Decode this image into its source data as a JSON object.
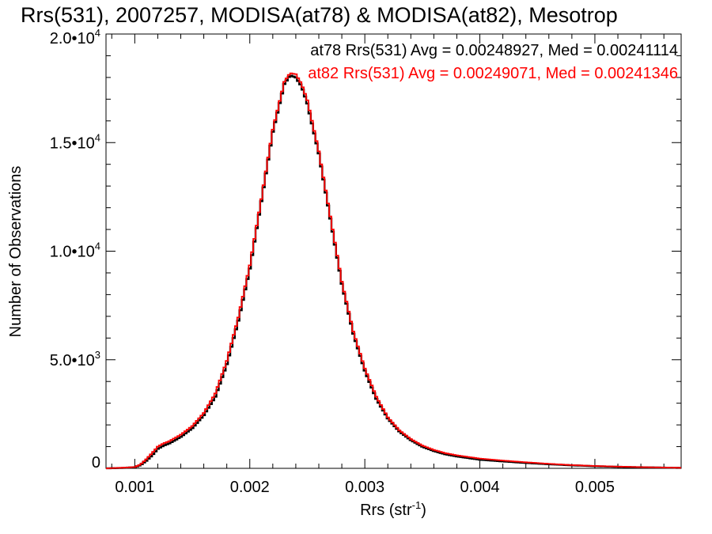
{
  "chart_data": {
    "type": "line",
    "title": "Rrs(531), 2007257, MODISA(at78) & MODISA(at82), Mesotrop",
    "xlabel_main": "Rrs (str",
    "xlabel_sup": "-1",
    "xlabel_end": ")",
    "ylabel": "Number of Observations",
    "xlim": [
      0.00075,
      0.00575
    ],
    "ylim": [
      0,
      20000
    ],
    "x_ticks": [
      0.001,
      0.002,
      0.003,
      0.004,
      0.005
    ],
    "x_tick_labels": [
      "0.001",
      "0.002",
      "0.003",
      "0.004",
      "0.005"
    ],
    "y_ticks": [
      {
        "value": 0,
        "mantissa": "0",
        "exp": ""
      },
      {
        "value": 5000,
        "mantissa": "5.0•10",
        "exp": "3"
      },
      {
        "value": 10000,
        "mantissa": "1.0•10",
        "exp": "4"
      },
      {
        "value": 15000,
        "mantissa": "1.5•10",
        "exp": "4"
      },
      {
        "value": 20000,
        "mantissa": "2.0•10",
        "exp": "4"
      }
    ],
    "legend_position": "top-right",
    "series": [
      {
        "name": "at78",
        "color": "#000000",
        "annotation": "at78 Rrs(531) Avg = 0.00248927, Med = 0.00241114",
        "x": [
          0.00075,
          0.0009,
          0.001,
          0.00105,
          0.0011,
          0.00115,
          0.0012,
          0.00125,
          0.0013,
          0.0014,
          0.0015,
          0.0016,
          0.0017,
          0.0018,
          0.0019,
          0.002,
          0.0021,
          0.0022,
          0.0023,
          0.00235,
          0.0024,
          0.00245,
          0.0025,
          0.0026,
          0.0027,
          0.0028,
          0.0029,
          0.003,
          0.0031,
          0.0032,
          0.0033,
          0.0034,
          0.0035,
          0.0036,
          0.0037,
          0.0038,
          0.004,
          0.0042,
          0.0044,
          0.0046,
          0.0048,
          0.005,
          0.0052,
          0.0054,
          0.00575
        ],
        "y": [
          0,
          20,
          50,
          150,
          350,
          600,
          900,
          1050,
          1150,
          1450,
          1850,
          2450,
          3300,
          4800,
          6800,
          9200,
          12300,
          15500,
          17700,
          18100,
          18000,
          17600,
          16800,
          14500,
          11500,
          8500,
          6200,
          4500,
          3200,
          2300,
          1700,
          1300,
          1000,
          800,
          650,
          550,
          400,
          320,
          250,
          190,
          140,
          100,
          70,
          50,
          20
        ]
      },
      {
        "name": "at82",
        "color": "#ff0000",
        "annotation": "at82 Rrs(531) Avg = 0.00249071, Med = 0.00241346",
        "x": [
          0.00075,
          0.0009,
          0.001,
          0.00105,
          0.0011,
          0.00115,
          0.0012,
          0.00125,
          0.0013,
          0.0014,
          0.0015,
          0.0016,
          0.0017,
          0.0018,
          0.0019,
          0.002,
          0.0021,
          0.0022,
          0.0023,
          0.00235,
          0.0024,
          0.00245,
          0.0025,
          0.0026,
          0.0027,
          0.0028,
          0.0029,
          0.003,
          0.0031,
          0.0032,
          0.0033,
          0.0034,
          0.0035,
          0.0036,
          0.0037,
          0.0038,
          0.004,
          0.0042,
          0.0044,
          0.0046,
          0.0048,
          0.005,
          0.0052,
          0.0054,
          0.00575
        ],
        "y": [
          0,
          30,
          60,
          180,
          420,
          700,
          1000,
          1150,
          1250,
          1550,
          1950,
          2550,
          3450,
          4950,
          6950,
          9350,
          12400,
          15600,
          17800,
          18200,
          18150,
          17700,
          16950,
          14600,
          11600,
          8600,
          6300,
          4600,
          3300,
          2350,
          1750,
          1350,
          1050,
          850,
          700,
          600,
          450,
          360,
          280,
          210,
          150,
          110,
          80,
          55,
          25
        ]
      }
    ]
  }
}
